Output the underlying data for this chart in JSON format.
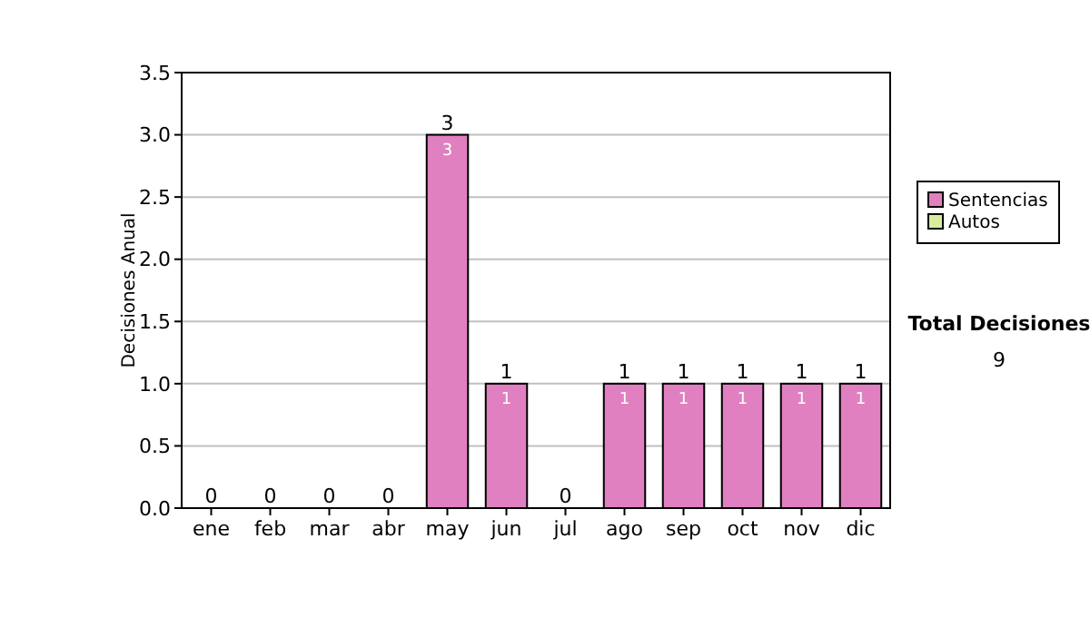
{
  "chart_data": {
    "type": "bar",
    "ylabel": "Decisiones Anual",
    "categories": [
      "ene",
      "feb",
      "mar",
      "abr",
      "may",
      "jun",
      "jul",
      "ago",
      "sep",
      "oct",
      "nov",
      "dic"
    ],
    "series": [
      {
        "name": "Sentencias",
        "color": "#e080c0",
        "values": [
          0,
          0,
          0,
          0,
          3,
          1,
          0,
          1,
          1,
          1,
          1,
          1
        ],
        "value_labels": [
          null,
          null,
          null,
          null,
          "3",
          "1",
          null,
          "1",
          "1",
          "1",
          "1",
          "1"
        ]
      },
      {
        "name": "Autos",
        "color": "#d8eca0",
        "values": [
          0,
          0,
          0,
          0,
          0,
          0,
          0,
          0,
          0,
          0,
          0,
          0
        ]
      }
    ],
    "stacked": true,
    "totals": [
      "0",
      "0",
      "0",
      "0",
      "3",
      "1",
      "0",
      "1",
      "1",
      "1",
      "1",
      "1"
    ],
    "ylim": [
      0,
      3.5
    ],
    "yticks": [
      {
        "value": 0,
        "label": "0.0"
      },
      {
        "value": 0.5,
        "label": "0.5"
      },
      {
        "value": 1,
        "label": "1.0"
      },
      {
        "value": 1.5,
        "label": "1.5"
      },
      {
        "value": 2,
        "label": "2.0"
      },
      {
        "value": 2.5,
        "label": "2.5"
      },
      {
        "value": 3,
        "label": "3.0"
      },
      {
        "value": 3.5,
        "label": "3.5"
      }
    ],
    "grid": "y",
    "legend": "right",
    "annotations": [
      "Total Decisiones",
      "9"
    ]
  }
}
